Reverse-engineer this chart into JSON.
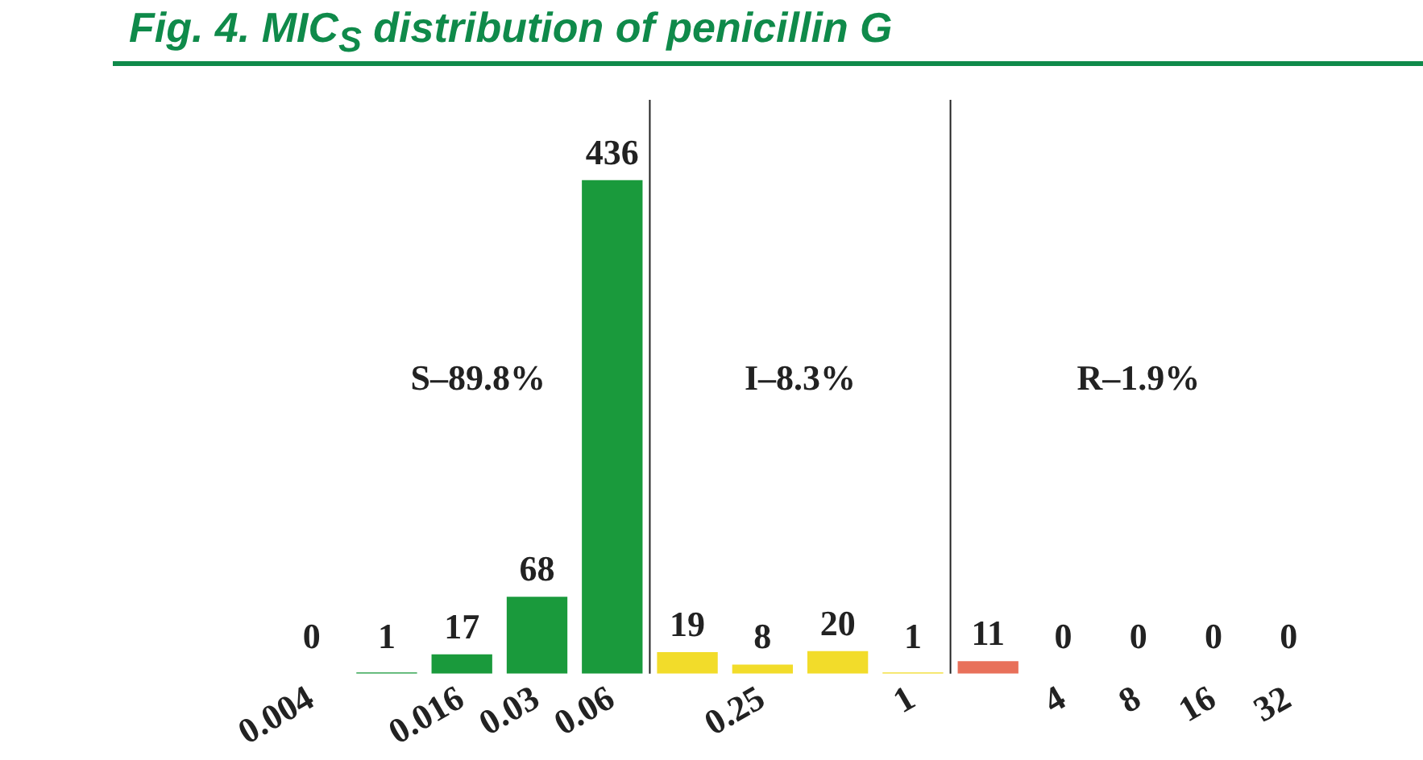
{
  "chart_data": {
    "type": "bar",
    "title": "Fig. 4. MIC$_{S}$ distribution of penicillin G",
    "categories": [
      "0.004",
      null,
      "0.016",
      "0.03",
      "0.06",
      null,
      "0.25",
      null,
      "1",
      null,
      "4",
      "8",
      "16",
      "32"
    ],
    "values": [
      0,
      1,
      17,
      68,
      436,
      19,
      8,
      20,
      1,
      11,
      0,
      0,
      0,
      0
    ],
    "colors": [
      "#1a9a3c",
      "#1a9a3c",
      "#1a9a3c",
      "#1a9a3c",
      "#1a9a3c",
      "#f2dc2a",
      "#f2dc2a",
      "#f2dc2a",
      "#f2dc2a",
      "#e8705a",
      "#e32a2a",
      "#e32a2a",
      "#e32a2a",
      "#e32a2a"
    ],
    "data_labels": true,
    "grid": false,
    "legend": false,
    "annotations": [
      "S–89.8%",
      "I–8.3%",
      "R–1.9%"
    ]
  }
}
